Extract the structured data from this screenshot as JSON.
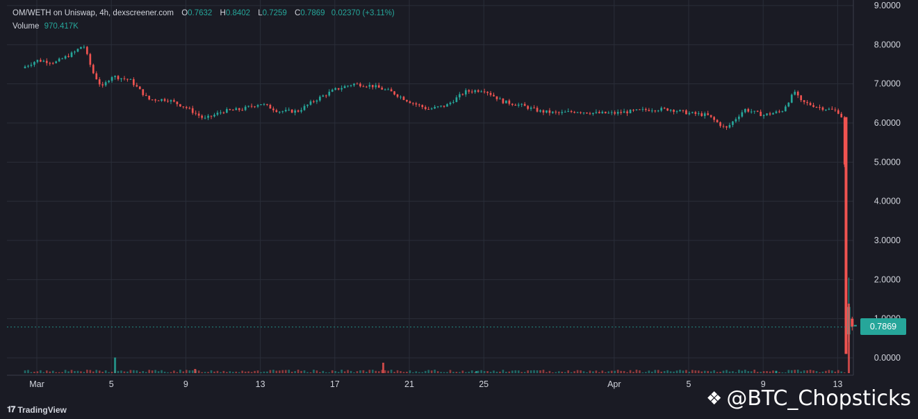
{
  "header": {
    "symbol": "OM/WETH on Uniswap, 4h, dexscreener.com",
    "open_label": "O",
    "open": "0.7632",
    "high_label": "H",
    "high": "0.8402",
    "low_label": "L",
    "low": "0.7259",
    "close_label": "C",
    "close": "0.7869",
    "change": "0.02370 (+3.11%)",
    "volume_label": "Volume",
    "volume": "970.417K"
  },
  "price_tag": "0.7869",
  "branding": {
    "tradingview": "TradingView",
    "watermark": "@BTC_Chopsticks"
  },
  "colors": {
    "up": "#26a69a",
    "down": "#ef5350",
    "grid": "#2a2e39",
    "background": "#1a1b24"
  },
  "chart_data": {
    "type": "candlestick",
    "ylim": [
      0,
      9
    ],
    "y_ticks": [
      "9.0000",
      "8.0000",
      "7.0000",
      "6.0000",
      "5.0000",
      "4.0000",
      "3.0000",
      "2.0000",
      "1.0000",
      "0.0000"
    ],
    "x_ticks": [
      "Mar",
      "5",
      "9",
      "13",
      "17",
      "21",
      "25",
      "Apr",
      "5",
      "9",
      "13"
    ],
    "x_tick_days": [
      1,
      5,
      9,
      13,
      17,
      21,
      25,
      32,
      36,
      40,
      44
    ],
    "last_price": 0.7869,
    "path_days": [
      0.2,
      1,
      2,
      3,
      3.5,
      4,
      4.5,
      5,
      6,
      7,
      8,
      9,
      10,
      11,
      12,
      13,
      14,
      15,
      16,
      17,
      18,
      19,
      20,
      21,
      22,
      23,
      24,
      25,
      26,
      27,
      28,
      29,
      30,
      31,
      32,
      33,
      34,
      35,
      36,
      37,
      38,
      39,
      40,
      41,
      41.7,
      42,
      43,
      44,
      44.3,
      44.6
    ],
    "path_close": [
      7.4,
      7.6,
      7.55,
      7.8,
      8.0,
      7.3,
      6.9,
      7.2,
      7.1,
      6.6,
      6.6,
      6.4,
      6.1,
      6.3,
      6.35,
      6.5,
      6.3,
      6.3,
      6.6,
      6.85,
      7.0,
      6.95,
      6.8,
      6.55,
      6.35,
      6.45,
      6.8,
      6.85,
      6.55,
      6.45,
      6.3,
      6.25,
      6.3,
      6.25,
      6.25,
      6.3,
      6.35,
      6.35,
      6.25,
      6.2,
      5.85,
      6.35,
      6.2,
      6.3,
      6.8,
      6.55,
      6.4,
      6.3,
      6.1,
      0.7869
    ],
    "volume_spikes": [
      {
        "day": 5.2,
        "volume": 0.45,
        "direction": "up"
      },
      {
        "day": 9.5,
        "volume": 0.12,
        "direction": "down"
      },
      {
        "day": 19.6,
        "volume": 0.3,
        "direction": "down"
      },
      {
        "day": 24.6,
        "volume": 0.06,
        "direction": "up"
      },
      {
        "day": 40.7,
        "volume": 0.06,
        "direction": "up"
      },
      {
        "day": 44.6,
        "volume": 2.0,
        "direction": "down"
      }
    ]
  }
}
